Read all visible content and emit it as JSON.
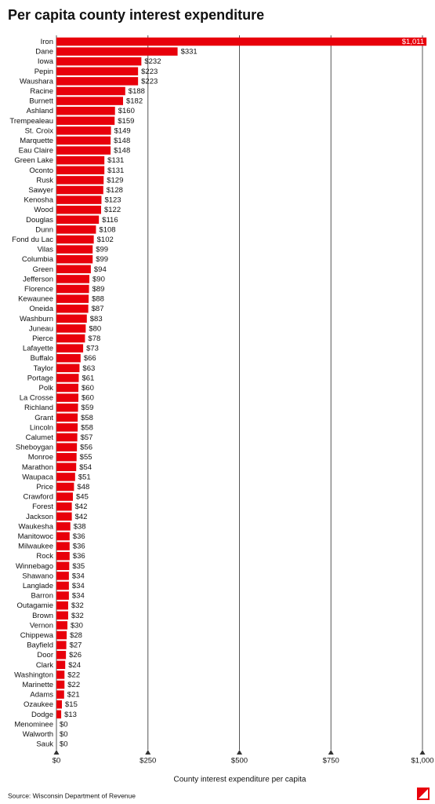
{
  "chart_data": {
    "type": "bar",
    "orientation": "horizontal",
    "title": "Per capita county interest expenditure",
    "x_label": "County interest expenditure per capita",
    "source": "Source: Wisconsin Department of Revenue",
    "color": "#e8000b",
    "categories": [
      "Iron",
      "Dane",
      "Iowa",
      "Pepin",
      "Waushara",
      "Racine",
      "Burnett",
      "Ashland",
      "Trempealeau",
      "St. Croix",
      "Marquette",
      "Eau Claire",
      "Green Lake",
      "Oconto",
      "Rusk",
      "Sawyer",
      "Kenosha",
      "Wood",
      "Douglas",
      "Dunn",
      "Fond du Lac",
      "Vilas",
      "Columbia",
      "Green",
      "Jefferson",
      "Florence",
      "Kewaunee",
      "Oneida",
      "Washburn",
      "Juneau",
      "Pierce",
      "Lafayette",
      "Buffalo",
      "Taylor",
      "Portage",
      "Polk",
      "La Crosse",
      "Richland",
      "Grant",
      "Lincoln",
      "Calumet",
      "Sheboygan",
      "Monroe",
      "Marathon",
      "Waupaca",
      "Price",
      "Crawford",
      "Forest",
      "Jackson",
      "Waukesha",
      "Manitowoc",
      "Milwaukee",
      "Rock",
      "Winnebago",
      "Shawano",
      "Langlade",
      "Barron",
      "Outagamie",
      "Brown",
      "Vernon",
      "Chippewa",
      "Bayfield",
      "Door",
      "Clark",
      "Washington",
      "Marinette",
      "Adams",
      "Ozaukee",
      "Dodge",
      "Menominee",
      "Walworth",
      "Sauk"
    ],
    "values": [
      1011,
      331,
      232,
      223,
      223,
      188,
      182,
      160,
      159,
      149,
      148,
      148,
      131,
      131,
      129,
      128,
      123,
      122,
      116,
      108,
      102,
      99,
      99,
      94,
      90,
      89,
      88,
      87,
      83,
      80,
      78,
      73,
      66,
      63,
      61,
      60,
      60,
      59,
      58,
      58,
      57,
      56,
      55,
      54,
      51,
      48,
      45,
      42,
      42,
      38,
      36,
      36,
      36,
      35,
      34,
      34,
      34,
      32,
      32,
      30,
      28,
      27,
      26,
      24,
      22,
      22,
      21,
      15,
      13,
      0,
      0,
      0
    ],
    "value_labels": [
      "$1,011",
      "$331",
      "$232",
      "$223",
      "$223",
      "$188",
      "$182",
      "$160",
      "$159",
      "$149",
      "$148",
      "$148",
      "$131",
      "$131",
      "$129",
      "$128",
      "$123",
      "$122",
      "$116",
      "$108",
      "$102",
      "$99",
      "$99",
      "$94",
      "$90",
      "$89",
      "$88",
      "$87",
      "$83",
      "$80",
      "$78",
      "$73",
      "$66",
      "$63",
      "$61",
      "$60",
      "$60",
      "$59",
      "$58",
      "$58",
      "$57",
      "$56",
      "$55",
      "$54",
      "$51",
      "$48",
      "$45",
      "$42",
      "$42",
      "$38",
      "$36",
      "$36",
      "$36",
      "$35",
      "$34",
      "$34",
      "$34",
      "$32",
      "$32",
      "$30",
      "$28",
      "$27",
      "$26",
      "$24",
      "$22",
      "$22",
      "$21",
      "$15",
      "$13",
      "$0",
      "$0",
      "$0"
    ],
    "xlim": [
      0,
      1000
    ],
    "xticks": [
      {
        "value": 0,
        "label": "$0"
      },
      {
        "value": 250,
        "label": "$250"
      },
      {
        "value": 500,
        "label": "$500"
      },
      {
        "value": 750,
        "label": "$750"
      },
      {
        "value": 1000,
        "label": "$1,000"
      }
    ],
    "grid": true
  }
}
